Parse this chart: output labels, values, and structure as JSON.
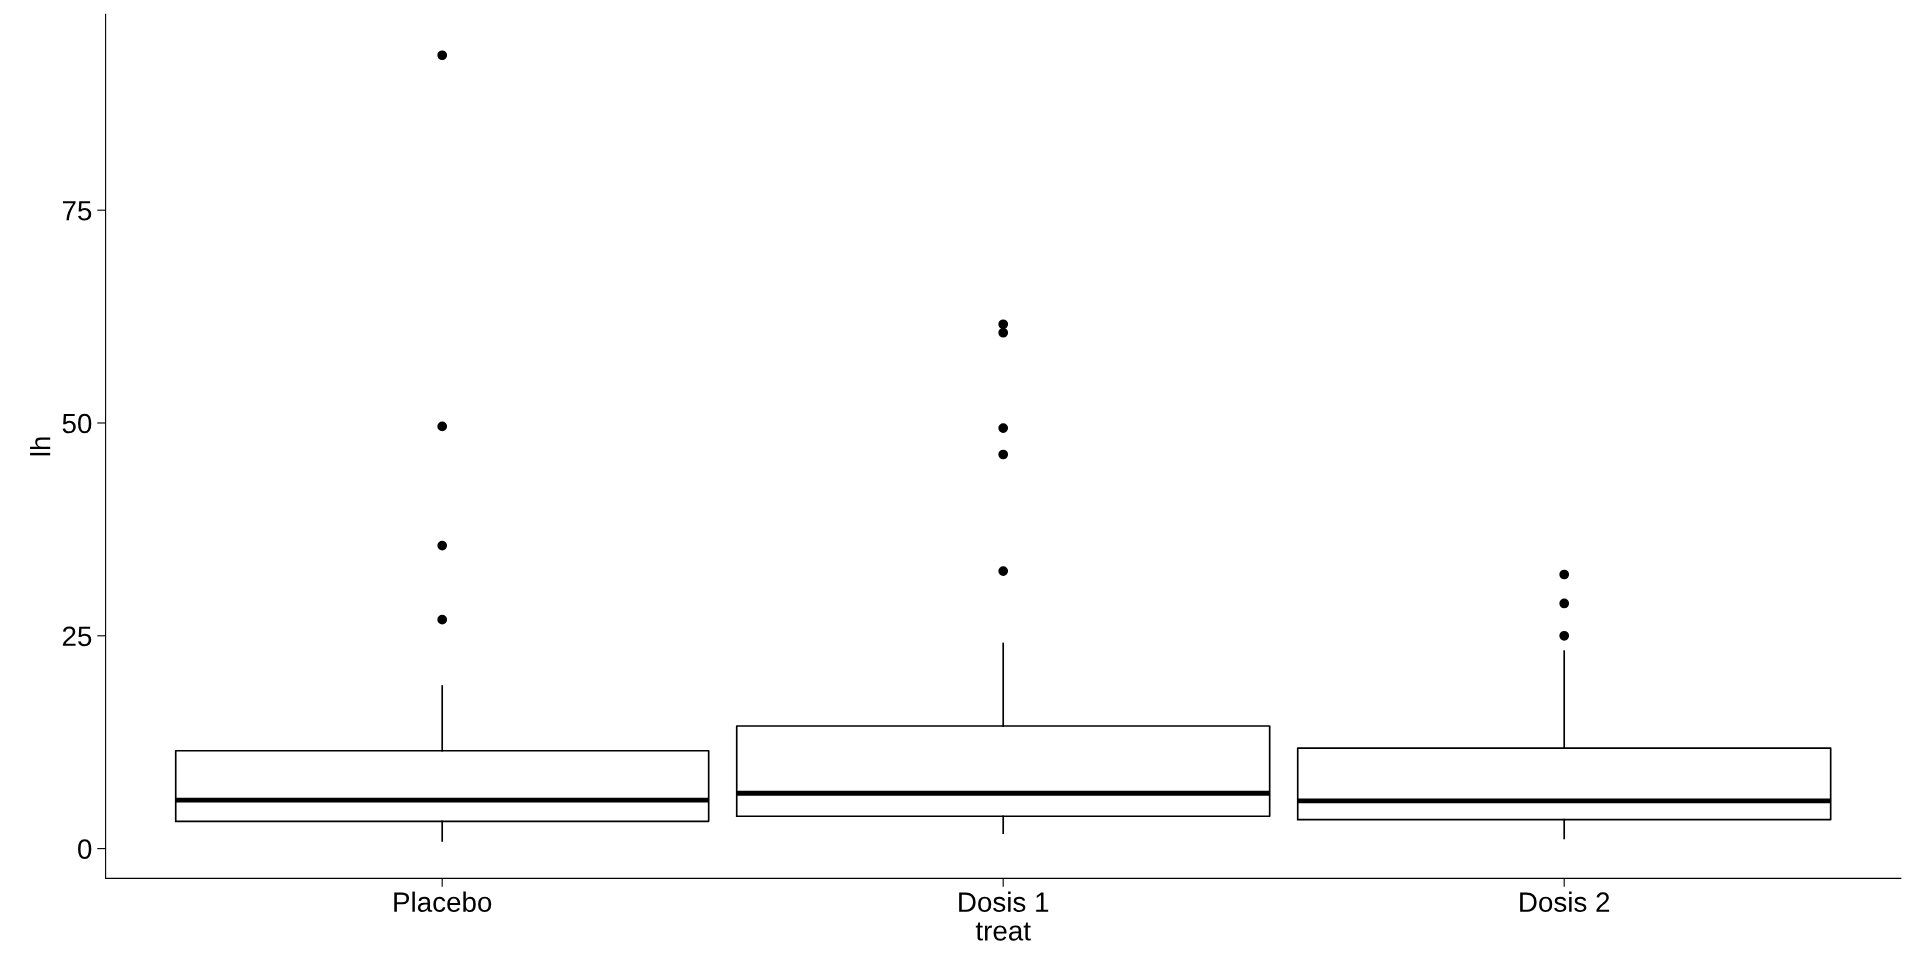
{
  "chart_data": {
    "type": "box",
    "xlabel": "treat",
    "ylabel": "lh",
    "categories": [
      "Placebo",
      "Dosis 1",
      "Dosis 2"
    ],
    "boxes": [
      {
        "low": 0.9,
        "q1": 3.2,
        "median": 5.7,
        "q3": 11.5,
        "high": 19.1,
        "outliers": [
          93.2,
          49.6,
          35.6,
          26.9
        ]
      },
      {
        "low": 1.8,
        "q1": 3.8,
        "median": 6.5,
        "q3": 14.4,
        "high": 24.1,
        "outliers": [
          61.6,
          60.6,
          49.4,
          46.3,
          32.6
        ]
      },
      {
        "low": 1.2,
        "q1": 3.4,
        "median": 5.6,
        "q3": 11.8,
        "high": 23.2,
        "outliers": [
          32.2,
          28.8,
          25.0
        ]
      }
    ],
    "color": "#000000",
    "ylim": [
      -3.5,
      98
    ],
    "yticks": [
      0,
      25,
      50,
      75
    ],
    "grid": false,
    "marker": "circle"
  }
}
